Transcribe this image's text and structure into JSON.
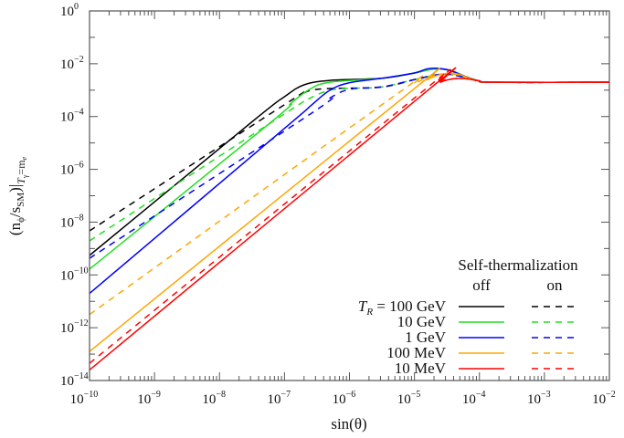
{
  "chart_data": {
    "type": "line",
    "xlabel": "sin(θ)",
    "ylabel_parts": {
      "open": "(n",
      "phi": "ϕ",
      "slash": "/s",
      "sm": "SM",
      "close": ")|",
      "t": "T",
      "gamma": "γ",
      "eq": "=m",
      "e": "e"
    },
    "x_scale": "log",
    "y_scale": "log",
    "xlim_exp": [
      -10,
      -2
    ],
    "ylim_exp": [
      -14,
      0
    ],
    "x_tick_labels": [
      "10",
      "10",
      "10",
      "10",
      "10",
      "10",
      "10",
      "10",
      "10"
    ],
    "x_tick_exps": [
      "−10",
      "−9",
      "−8",
      "−7",
      "−6",
      "−5",
      "−4",
      "−3",
      "−2"
    ],
    "y_tick_labels": [
      "10",
      "10",
      "10",
      "10",
      "10",
      "10",
      "10",
      "10"
    ],
    "y_tick_exps": [
      "0",
      "−2",
      "−4",
      "−6",
      "−8",
      "−10",
      "−12",
      "−14"
    ],
    "grid": false,
    "note_units": "points given as [log10 sin(theta), log10 value]",
    "series": [
      {
        "group": "100 GeV",
        "style": "off",
        "color": "#000000",
        "dashed": false,
        "points": [
          [
            -10,
            -9.26
          ],
          [
            -7.5,
            -4.2
          ],
          [
            -7.0,
            -3.25
          ],
          [
            -6.7,
            -2.8
          ],
          [
            -6.3,
            -2.63
          ],
          [
            -5.5,
            -2.55
          ],
          [
            -5.0,
            -2.35
          ],
          [
            -4.7,
            -2.2
          ],
          [
            -4.45,
            -2.25
          ],
          [
            -4.2,
            -2.5
          ],
          [
            -4.0,
            -2.65
          ],
          [
            -3.8,
            -2.7
          ],
          [
            -2,
            -2.7
          ]
        ]
      },
      {
        "group": "100 GeV",
        "style": "on",
        "color": "#000000",
        "dashed": true,
        "points": [
          [
            -10,
            -8.33
          ],
          [
            -7.0,
            -3.55
          ],
          [
            -6.7,
            -3.1
          ],
          [
            -6.4,
            -2.95
          ],
          [
            -5.5,
            -2.88
          ],
          [
            -5.0,
            -2.6
          ],
          [
            -4.6,
            -2.4
          ],
          [
            -4.35,
            -2.45
          ],
          [
            -4.1,
            -2.6
          ],
          [
            -3.8,
            -2.7
          ],
          [
            -2,
            -2.7
          ]
        ]
      },
      {
        "group": "10 GeV",
        "style": "off",
        "color": "#22dd22",
        "dashed": false,
        "points": [
          [
            -10,
            -9.78
          ],
          [
            -7.2,
            -4.2
          ],
          [
            -6.9,
            -3.5
          ],
          [
            -6.6,
            -2.95
          ],
          [
            -6.3,
            -2.7
          ],
          [
            -5.5,
            -2.55
          ],
          [
            -5.0,
            -2.35
          ],
          [
            -4.7,
            -2.2
          ],
          [
            -4.45,
            -2.25
          ],
          [
            -4.2,
            -2.5
          ],
          [
            -4.0,
            -2.65
          ],
          [
            -3.8,
            -2.7
          ],
          [
            -2,
            -2.7
          ]
        ]
      },
      {
        "group": "10 GeV",
        "style": "on",
        "color": "#22dd22",
        "dashed": true,
        "points": [
          [
            -10,
            -8.71
          ],
          [
            -7.0,
            -3.9
          ],
          [
            -6.6,
            -3.3
          ],
          [
            -6.3,
            -3.0
          ],
          [
            -6.0,
            -2.93
          ],
          [
            -5.5,
            -2.88
          ],
          [
            -5.0,
            -2.6
          ],
          [
            -4.6,
            -2.4
          ],
          [
            -4.35,
            -2.45
          ],
          [
            -4.1,
            -2.6
          ],
          [
            -3.8,
            -2.7
          ],
          [
            -2,
            -2.7
          ]
        ]
      },
      {
        "group": "1 GeV",
        "style": "off",
        "color": "#0000ff",
        "dashed": false,
        "points": [
          [
            -10,
            -10.7
          ],
          [
            -7.0,
            -4.45
          ],
          [
            -6.6,
            -3.6
          ],
          [
            -6.3,
            -3.0
          ],
          [
            -6.0,
            -2.72
          ],
          [
            -5.5,
            -2.55
          ],
          [
            -5.0,
            -2.35
          ],
          [
            -4.77,
            -2.18
          ],
          [
            -4.5,
            -2.22
          ],
          [
            -4.25,
            -2.45
          ],
          [
            -4.0,
            -2.65
          ],
          [
            -3.8,
            -2.7
          ],
          [
            -2,
            -2.7
          ]
        ]
      },
      {
        "group": "1 GeV",
        "style": "on",
        "color": "#0000ff",
        "dashed": true,
        "points": [
          [
            -10,
            -9.37
          ],
          [
            -6.6,
            -3.9
          ],
          [
            -6.3,
            -3.3
          ],
          [
            -6.0,
            -2.97
          ],
          [
            -5.5,
            -2.88
          ],
          [
            -5.0,
            -2.6
          ],
          [
            -4.6,
            -2.4
          ],
          [
            -4.35,
            -2.45
          ],
          [
            -4.1,
            -2.6
          ],
          [
            -3.8,
            -2.7
          ],
          [
            -2,
            -2.7
          ]
        ]
      },
      {
        "group": "100 MeV",
        "style": "off",
        "color": "#ffa500",
        "dashed": false,
        "points": [
          [
            -10,
            -12.9
          ],
          [
            -5.05,
            -3.04
          ],
          [
            -4.8,
            -2.6
          ],
          [
            -4.55,
            -2.38
          ],
          [
            -4.35,
            -2.38
          ],
          [
            -4.15,
            -2.55
          ],
          [
            -4.0,
            -2.65
          ],
          [
            -3.8,
            -2.7
          ],
          [
            -2,
            -2.7
          ]
        ]
      },
      {
        "group": "100 MeV",
        "style": "on",
        "color": "#ffa500",
        "dashed": true,
        "points": [
          [
            -10,
            -11.5
          ],
          [
            -5.3,
            -3.2
          ],
          [
            -5.0,
            -2.75
          ],
          [
            -4.7,
            -2.45
          ],
          [
            -4.45,
            -2.38
          ],
          [
            -4.25,
            -2.48
          ],
          [
            -4.0,
            -2.65
          ],
          [
            -3.8,
            -2.7
          ],
          [
            -2,
            -2.7
          ]
        ]
      },
      {
        "group": "10 MeV",
        "style": "off",
        "color": "#ff0000",
        "dashed": false,
        "points": [
          [
            -10,
            -13.6
          ],
          [
            -4.81,
            -3.04
          ],
          [
            -4.6,
            -2.7
          ],
          [
            -4.4,
            -2.57
          ],
          [
            -4.2,
            -2.57
          ],
          [
            -4.0,
            -2.65
          ],
          [
            -3.8,
            -2.7
          ],
          [
            -2,
            -2.7
          ]
        ]
      },
      {
        "group": "10 MeV",
        "style": "on",
        "color": "#ff0000",
        "dashed": true,
        "points": [
          [
            -10,
            -13.35
          ],
          [
            -4.9,
            -3.1
          ],
          [
            -4.65,
            -2.7
          ],
          [
            -4.4,
            -2.57
          ],
          [
            -4.2,
            -2.57
          ],
          [
            -4.0,
            -2.65
          ],
          [
            -3.8,
            -2.7
          ],
          [
            -2,
            -2.7
          ]
        ]
      }
    ]
  },
  "legend": {
    "title": "Self-thermalization",
    "col_off": "off",
    "col_on": "on",
    "tr_symbol": "T",
    "tr_sub": "R",
    "tr_eq": " = 100 GeV",
    "rows": [
      "10 GeV",
      "1 GeV",
      "100 MeV",
      "10 MeV"
    ],
    "colors": [
      "#000000",
      "#22dd22",
      "#0000ff",
      "#ffa500",
      "#ff0000"
    ]
  }
}
